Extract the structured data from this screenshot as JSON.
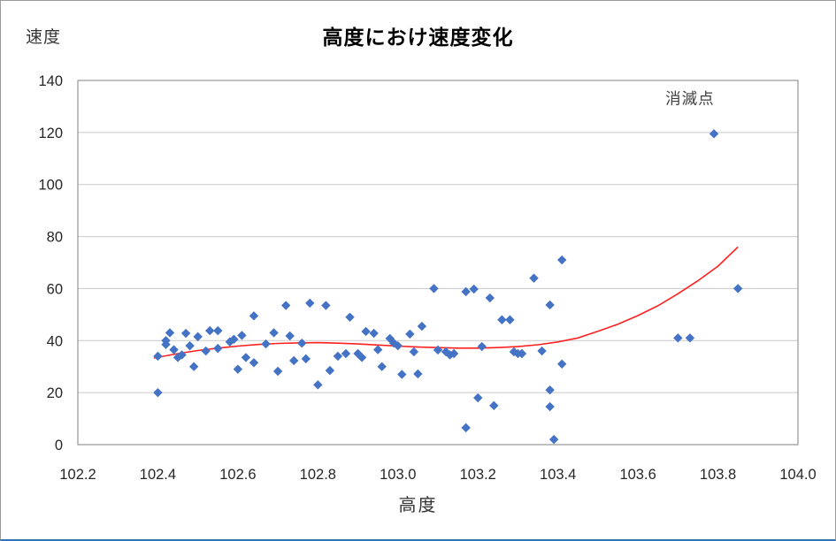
{
  "page": {
    "background": "#FFFFFF",
    "bottom_edge_color": "#2E75B6"
  },
  "chart_data": {
    "type": "scatter",
    "title": "高度におけ速度変化",
    "xlabel": "高度",
    "ylabel": "速度",
    "xlim": [
      102.2,
      104.0
    ],
    "ylim": [
      0,
      140
    ],
    "x_ticks": [
      "102.2",
      "102.4",
      "102.6",
      "102.8",
      "103.0",
      "103.2",
      "103.4",
      "103.6",
      "103.8",
      "104.0"
    ],
    "y_ticks": [
      "0",
      "20",
      "40",
      "60",
      "80",
      "100",
      "120",
      "140"
    ],
    "grid": "horizontal-only",
    "legend": "none",
    "marker": {
      "shape": "diamond",
      "color": "#4472C4",
      "size": 10
    },
    "series": [
      {
        "name": "速度",
        "points": [
          [
            102.4,
            20
          ],
          [
            102.4,
            34
          ],
          [
            102.42,
            40
          ],
          [
            102.42,
            38.5
          ],
          [
            102.43,
            43
          ],
          [
            102.44,
            36.5
          ],
          [
            102.45,
            33.5
          ],
          [
            102.46,
            34.5
          ],
          [
            102.47,
            42.8
          ],
          [
            102.48,
            38
          ],
          [
            102.49,
            30
          ],
          [
            102.5,
            41.5
          ],
          [
            102.52,
            36
          ],
          [
            102.53,
            43.8
          ],
          [
            102.55,
            43.8
          ],
          [
            102.55,
            37
          ],
          [
            102.58,
            39.5
          ],
          [
            102.59,
            40.5
          ],
          [
            102.6,
            29
          ],
          [
            102.61,
            42
          ],
          [
            102.62,
            33.5
          ],
          [
            102.64,
            49.5
          ],
          [
            102.64,
            31.5
          ],
          [
            102.67,
            38.7
          ],
          [
            102.69,
            43
          ],
          [
            102.7,
            28.2
          ],
          [
            102.72,
            53.5
          ],
          [
            102.73,
            41.8
          ],
          [
            102.74,
            32.3
          ],
          [
            102.76,
            39
          ],
          [
            102.77,
            33
          ],
          [
            102.78,
            54.4
          ],
          [
            102.8,
            23
          ],
          [
            102.82,
            53.5
          ],
          [
            102.83,
            28.5
          ],
          [
            102.85,
            34
          ],
          [
            102.87,
            35
          ],
          [
            102.88,
            49
          ],
          [
            102.9,
            35
          ],
          [
            102.91,
            33.5
          ],
          [
            102.92,
            43.5
          ],
          [
            102.94,
            42.8
          ],
          [
            102.95,
            36.5
          ],
          [
            102.96,
            30
          ],
          [
            102.98,
            40.8
          ],
          [
            102.99,
            39
          ],
          [
            103.0,
            38
          ],
          [
            103.01,
            27
          ],
          [
            103.03,
            42.5
          ],
          [
            103.04,
            35.7
          ],
          [
            103.05,
            27.2
          ],
          [
            103.06,
            45.5
          ],
          [
            103.09,
            60
          ],
          [
            103.1,
            36.4
          ],
          [
            103.12,
            35.7
          ],
          [
            103.13,
            34.5
          ],
          [
            103.14,
            35
          ],
          [
            103.17,
            58.8
          ],
          [
            103.19,
            59.8
          ],
          [
            103.17,
            6.5
          ],
          [
            103.2,
            18
          ],
          [
            103.21,
            37.7
          ],
          [
            103.23,
            56.4
          ],
          [
            103.24,
            15
          ],
          [
            103.26,
            48
          ],
          [
            103.28,
            48
          ],
          [
            103.29,
            35.7
          ],
          [
            103.3,
            35
          ],
          [
            103.31,
            35
          ],
          [
            103.34,
            64
          ],
          [
            103.36,
            36
          ],
          [
            103.38,
            53.7
          ],
          [
            103.38,
            21
          ],
          [
            103.38,
            14.6
          ],
          [
            103.39,
            2
          ],
          [
            103.41,
            71
          ],
          [
            103.41,
            31
          ],
          [
            103.7,
            41
          ],
          [
            103.73,
            41
          ],
          [
            103.79,
            119.5
          ],
          [
            103.85,
            60
          ]
        ]
      }
    ],
    "trendline": {
      "style": "polynomial-fit",
      "color": "#FF2020",
      "points": [
        [
          102.39,
          33.3
        ],
        [
          102.45,
          35.0
        ],
        [
          102.5,
          36.2
        ],
        [
          102.55,
          37.1
        ],
        [
          102.6,
          37.9
        ],
        [
          102.65,
          38.5
        ],
        [
          102.7,
          38.9
        ],
        [
          102.75,
          39.1
        ],
        [
          102.8,
          39.2
        ],
        [
          102.85,
          39.0
        ],
        [
          102.9,
          38.7
        ],
        [
          102.95,
          38.3
        ],
        [
          103.0,
          37.9
        ],
        [
          103.05,
          37.5
        ],
        [
          103.1,
          37.3
        ],
        [
          103.15,
          37.1
        ],
        [
          103.2,
          37.1
        ],
        [
          103.25,
          37.3
        ],
        [
          103.3,
          37.7
        ],
        [
          103.35,
          38.4
        ],
        [
          103.4,
          39.5
        ],
        [
          103.45,
          41.0
        ],
        [
          103.5,
          43.6
        ],
        [
          103.55,
          46.3
        ],
        [
          103.6,
          49.6
        ],
        [
          103.65,
          53.4
        ],
        [
          103.7,
          58.0
        ],
        [
          103.75,
          63.0
        ],
        [
          103.8,
          68.6
        ],
        [
          103.85,
          76.0
        ]
      ]
    },
    "annotations": [
      {
        "text": "消滅点",
        "x": 103.73,
        "y": 133
      }
    ],
    "colors": {
      "gridline": "#C9C9C9",
      "axis": "#808080",
      "tick_text": "#262626",
      "annotation_text": "#404040"
    }
  }
}
